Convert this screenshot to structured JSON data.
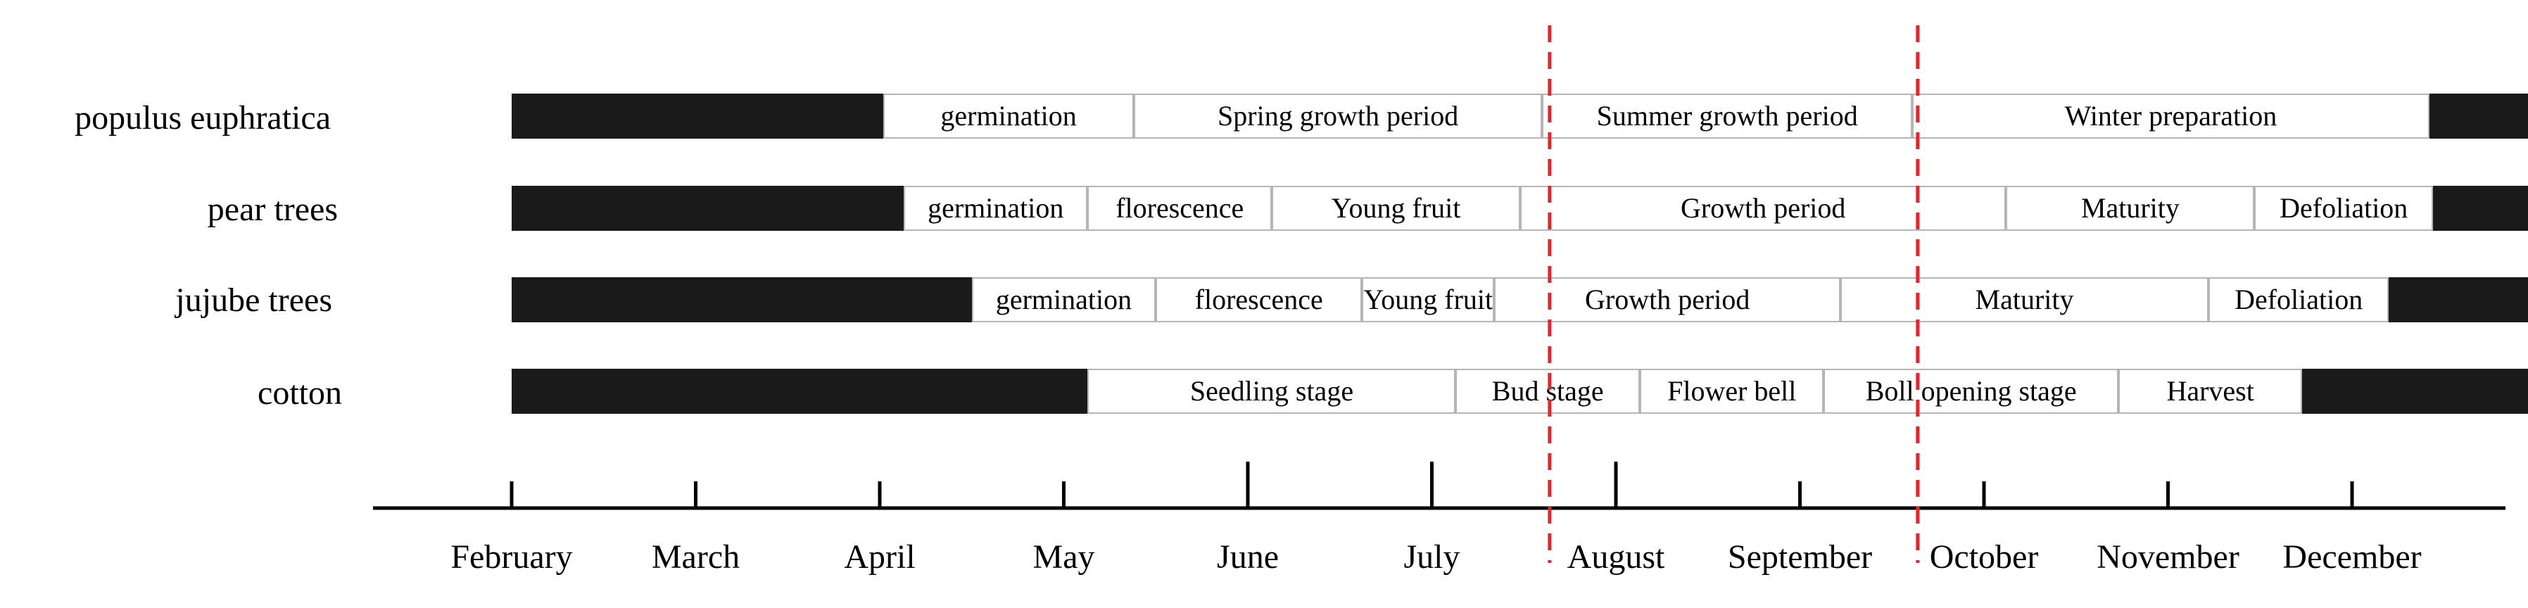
{
  "rows": [
    {
      "label": "populus euphratica",
      "segments": [
        {
          "kind": "dormant",
          "start": 1.0,
          "end": 3.02
        },
        {
          "kind": "stage",
          "label": "germination",
          "start": 3.02,
          "end": 4.38
        },
        {
          "kind": "stage",
          "label": "Spring growth period",
          "start": 4.38,
          "end": 6.6
        },
        {
          "kind": "stage",
          "label": "Summer growth period",
          "start": 6.6,
          "end": 8.61
        },
        {
          "kind": "stage",
          "label": "Winter preparation",
          "start": 8.61,
          "end": 11.42
        },
        {
          "kind": "dormant",
          "start": 11.42,
          "end": 12.06
        }
      ]
    },
    {
      "label": "pear trees",
      "segments": [
        {
          "kind": "dormant",
          "start": 1.0,
          "end": 3.13
        },
        {
          "kind": "stage",
          "label": "germination",
          "start": 3.13,
          "end": 4.13
        },
        {
          "kind": "stage",
          "label": "florescence",
          "start": 4.13,
          "end": 5.13
        },
        {
          "kind": "stage",
          "label": "Young fruit",
          "start": 5.13,
          "end": 6.48
        },
        {
          "kind": "stage",
          "label": "Growth period",
          "start": 6.48,
          "end": 9.12
        },
        {
          "kind": "stage",
          "label": "Maturity",
          "start": 9.12,
          "end": 10.47
        },
        {
          "kind": "stage",
          "label": "Defoliation",
          "start": 10.47,
          "end": 11.44
        },
        {
          "kind": "dormant",
          "start": 11.44,
          "end": 12.06
        }
      ]
    },
    {
      "label": "jujube trees",
      "segments": [
        {
          "kind": "dormant",
          "start": 1.0,
          "end": 3.5
        },
        {
          "kind": "stage",
          "label": "germination",
          "start": 3.5,
          "end": 4.5
        },
        {
          "kind": "stage",
          "label": "florescence",
          "start": 4.5,
          "end": 5.62
        },
        {
          "kind": "stage",
          "label": "Young fruit",
          "start": 5.62,
          "end": 6.34
        },
        {
          "kind": "stage",
          "label": "Growth period",
          "start": 6.34,
          "end": 8.22
        },
        {
          "kind": "stage",
          "label": "Maturity",
          "start": 8.22,
          "end": 10.22
        },
        {
          "kind": "stage",
          "label": "Defoliation",
          "start": 10.22,
          "end": 11.2
        },
        {
          "kind": "dormant",
          "start": 11.2,
          "end": 12.06
        }
      ]
    },
    {
      "label": "cotton",
      "segments": [
        {
          "kind": "dormant",
          "start": 1.0,
          "end": 4.13
        },
        {
          "kind": "stage",
          "label": "Seedling stage",
          "start": 4.13,
          "end": 6.13
        },
        {
          "kind": "stage",
          "label": "Bud stage",
          "start": 6.13,
          "end": 7.13
        },
        {
          "kind": "stage",
          "label": "Flower bell",
          "start": 7.13,
          "end": 8.13
        },
        {
          "kind": "stage",
          "label": "Boll opening stage",
          "start": 8.13,
          "end": 9.73
        },
        {
          "kind": "stage",
          "label": "Harvest",
          "start": 9.73,
          "end": 10.73
        },
        {
          "kind": "dormant",
          "start": 10.73,
          "end": 12.06
        }
      ]
    }
  ],
  "months": [
    "February",
    "March",
    "April",
    "May",
    "June",
    "July",
    "August",
    "September",
    "October",
    "November",
    "December"
  ],
  "divider_months": [
    6.64,
    8.64
  ],
  "colors": {
    "dormant": "#1a1a1a",
    "stage_border": "#b5b5b5",
    "divider": "#e8242a",
    "axis": "#000000"
  }
}
